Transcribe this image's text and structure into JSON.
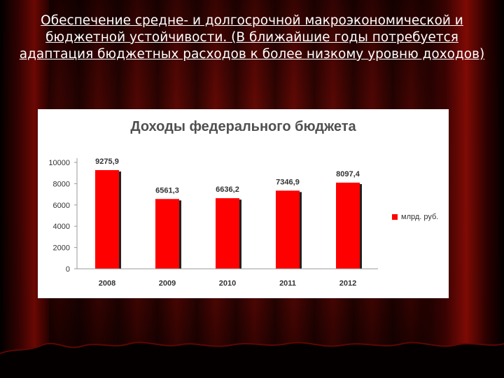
{
  "slide": {
    "title_line1": "Обеспечение средне- и долгосрочной макроэкономической и",
    "title_line2": "бюджетной устойчивости. (В ближайшие годы потребуется",
    "title_line3": "адаптация бюджетных расходов к  более низкому уровню доходов)"
  },
  "chart_data": {
    "type": "bar",
    "title": "Доходы федерального бюджета",
    "categories": [
      "2008",
      "2009",
      "2010",
      "2011",
      "2012"
    ],
    "series": [
      {
        "name": "млрд. руб.",
        "values": [
          9275.9,
          6561.3,
          6636.2,
          7346.9,
          8097.4
        ],
        "labels": [
          "9275,9",
          "6561,3",
          "6636,2",
          "7346,9",
          "8097,4"
        ]
      }
    ],
    "yticks": [
      "0",
      "2000",
      "4000",
      "6000",
      "8000",
      "10000"
    ],
    "ylim": [
      0,
      10000
    ],
    "grid": false,
    "legend": "right",
    "colors": {
      "bar": "#ff0000",
      "shadow": "#222222"
    }
  }
}
